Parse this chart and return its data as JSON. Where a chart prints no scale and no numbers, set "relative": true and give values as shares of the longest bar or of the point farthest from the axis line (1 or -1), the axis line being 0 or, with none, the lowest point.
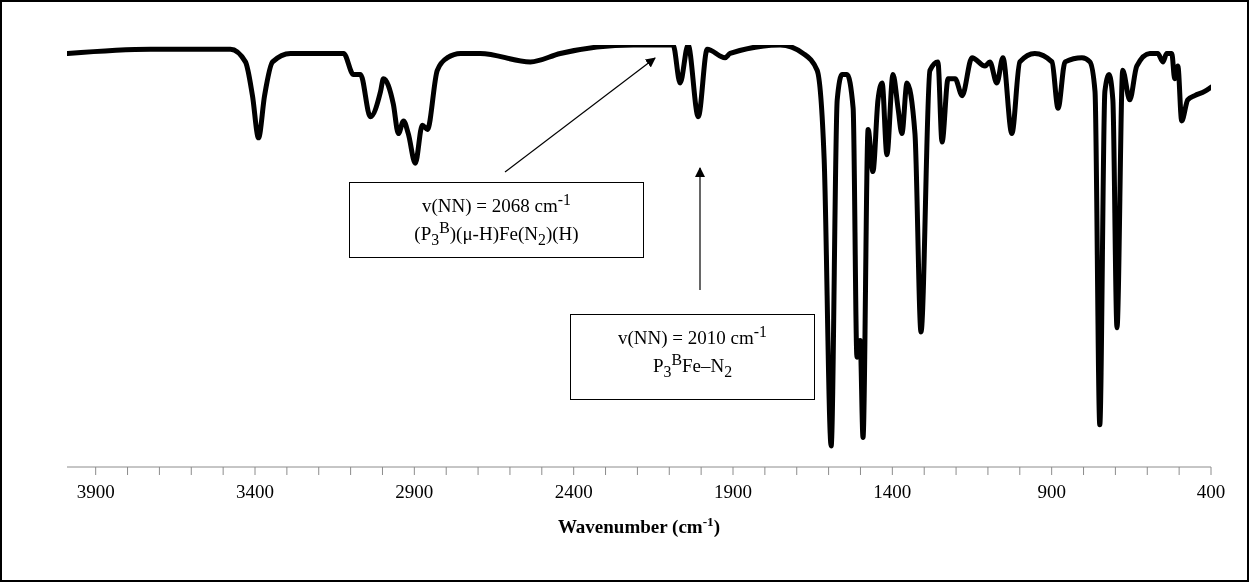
{
  "chart_data": {
    "type": "line",
    "relative": true,
    "xlabel": "Wavenumber (cm$^{-1}$)",
    "xlim": [
      3990,
      400
    ],
    "xticks": [
      3900,
      {
        "value": 3800,
        "label": null
      },
      {
        "value": 3700,
        "label": null
      },
      {
        "value": 3600,
        "label": null
      },
      {
        "value": 3500,
        "label": null
      },
      3400,
      {
        "value": 3300,
        "label": null
      },
      {
        "value": 3200,
        "label": null
      },
      {
        "value": 3100,
        "label": null
      },
      {
        "value": 3000,
        "label": null
      },
      2900,
      {
        "value": 2800,
        "label": null
      },
      {
        "value": 2700,
        "label": null
      },
      {
        "value": 2600,
        "label": null
      },
      {
        "value": 2500,
        "label": null
      },
      2400,
      {
        "value": 2300,
        "label": null
      },
      {
        "value": 2200,
        "label": null
      },
      {
        "value": 2100,
        "label": null
      },
      {
        "value": 2000,
        "label": null
      },
      1900,
      {
        "value": 1800,
        "label": null
      },
      {
        "value": 1700,
        "label": null
      },
      {
        "value": 1600,
        "label": null
      },
      {
        "value": 1500,
        "label": null
      },
      1400,
      {
        "value": 1300,
        "label": null
      },
      {
        "value": 1200,
        "label": null
      },
      {
        "value": 1100,
        "label": null
      },
      {
        "value": 1000,
        "label": null
      },
      900,
      {
        "value": 800,
        "label": null
      },
      {
        "value": 700,
        "label": null
      },
      {
        "value": 600,
        "label": null
      },
      {
        "value": 500,
        "label": null
      },
      400
    ],
    "x": [
      3988,
      3728,
      3477,
      3430,
      3408,
      3389,
      3370,
      3345,
      3289,
      3122,
      3091,
      3069,
      3038,
      3006,
      2997,
      2966,
      2950,
      2934,
      2919,
      2897,
      2875,
      2859,
      2828,
      2796,
      2755,
      2693,
      2536,
      2442,
      2213,
      2088,
      2066,
      2041,
      2009,
      1981,
      1925,
      1909,
      1752,
      1680,
      1636,
      1614,
      1592,
      1573,
      1558,
      1542,
      1523,
      1511,
      1501,
      1492,
      1476,
      1461,
      1445,
      1432,
      1417,
      1398,
      1382,
      1370,
      1354,
      1329,
      1310,
      1282,
      1257,
      1244,
      1225,
      1203,
      1181,
      1150,
      1109,
      1094,
      1072,
      1053,
      1025,
      1000,
      953,
      899,
      880,
      858,
      805,
      780,
      764,
      749,
      733,
      720,
      708,
      695,
      677,
      655,
      633,
      592,
      567,
      551,
      539,
      523,
      514,
      504,
      492,
      473,
      451,
      420,
      400
    ],
    "series": [
      {
        "color": "#000000",
        "values": [
          0.98,
          0.99,
          0.99,
          0.96,
          0.88,
          0.78,
          0.88,
          0.96,
          0.98,
          0.98,
          0.93,
          0.93,
          0.83,
          0.89,
          0.92,
          0.86,
          0.79,
          0.82,
          0.79,
          0.72,
          0.81,
          0.8,
          0.94,
          0.97,
          0.98,
          0.98,
          0.96,
          0.98,
          1.0,
          1.0,
          0.91,
          1.0,
          0.83,
          0.99,
          0.97,
          0.98,
          1.0,
          0.98,
          0.94,
          0.73,
          0.05,
          0.87,
          0.93,
          0.93,
          0.85,
          0.26,
          0.3,
          0.07,
          0.8,
          0.7,
          0.87,
          0.91,
          0.74,
          0.93,
          0.85,
          0.79,
          0.91,
          0.79,
          0.32,
          0.94,
          0.96,
          0.77,
          0.92,
          0.92,
          0.88,
          0.97,
          0.95,
          0.96,
          0.91,
          0.97,
          0.79,
          0.96,
          0.98,
          0.96,
          0.85,
          0.96,
          0.97,
          0.96,
          0.89,
          0.1,
          0.89,
          0.93,
          0.87,
          0.33,
          0.94,
          0.87,
          0.95,
          0.98,
          0.98,
          0.96,
          0.98,
          0.98,
          0.92,
          0.95,
          0.82,
          0.87,
          0.88,
          0.89,
          0.9
        ]
      }
    ],
    "marker": "none",
    "line_style": "solid",
    "grid": false,
    "legend": false,
    "annotations": [
      "v(NN) = 2068 cm$^{-1}$\n(P$_{3}$$^{B}$)(μ-H)Fe(N$_{2}$)(H)",
      "v(NN) = 2010 cm$^{-1}$\nP$_{3}$$^{B}$Fe–N$_{2}$"
    ]
  }
}
